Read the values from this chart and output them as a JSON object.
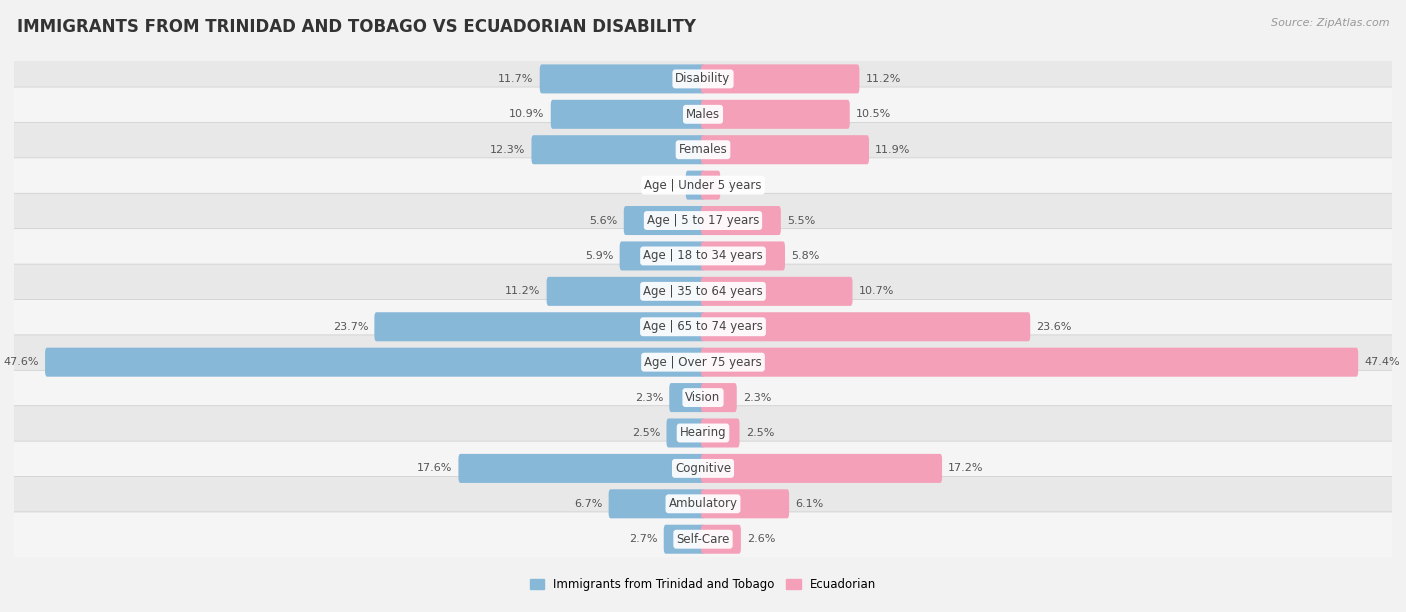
{
  "title": "IMMIGRANTS FROM TRINIDAD AND TOBAGO VS ECUADORIAN DISABILITY",
  "source": "Source: ZipAtlas.com",
  "categories": [
    "Disability",
    "Males",
    "Females",
    "Age | Under 5 years",
    "Age | 5 to 17 years",
    "Age | 18 to 34 years",
    "Age | 35 to 64 years",
    "Age | 65 to 74 years",
    "Age | Over 75 years",
    "Vision",
    "Hearing",
    "Cognitive",
    "Ambulatory",
    "Self-Care"
  ],
  "left_values": [
    11.7,
    10.9,
    12.3,
    1.1,
    5.6,
    5.9,
    11.2,
    23.7,
    47.6,
    2.3,
    2.5,
    17.6,
    6.7,
    2.7
  ],
  "right_values": [
    11.2,
    10.5,
    11.9,
    1.1,
    5.5,
    5.8,
    10.7,
    23.6,
    47.4,
    2.3,
    2.5,
    17.2,
    6.1,
    2.6
  ],
  "left_color": "#88b8d8",
  "right_color": "#f4a0b8",
  "left_label": "Immigrants from Trinidad and Tobago",
  "right_label": "Ecuadorian",
  "axis_max": 50.0,
  "background_color": "#f2f2f2",
  "row_color_a": "#e8e8e8",
  "row_color_b": "#f5f5f5",
  "title_fontsize": 12,
  "label_fontsize": 8.5,
  "value_fontsize": 8,
  "source_fontsize": 8
}
